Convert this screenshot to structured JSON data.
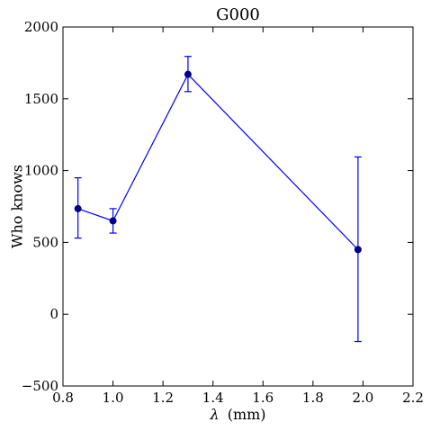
{
  "chart_data": {
    "type": "line",
    "title": "G000",
    "xlabel_symbol": "λ",
    "xlabel_unit": "(mm)",
    "ylabel": "Who knows",
    "xlim": [
      0.8,
      2.2
    ],
    "ylim": [
      -500,
      2000
    ],
    "xticks": [
      0.8,
      1.0,
      1.2,
      1.4,
      1.6,
      1.8,
      2.0,
      2.2
    ],
    "xtick_labels": [
      "0.8",
      "1.0",
      "1.2",
      "1.4",
      "1.6",
      "1.8",
      "2.0",
      "2.2"
    ],
    "yticks": [
      -500,
      0,
      500,
      1000,
      1500,
      2000
    ],
    "ytick_labels": [
      "−500",
      "0",
      "500",
      "1000",
      "1500",
      "2000"
    ],
    "grid": false,
    "series": [
      {
        "color": "#0000ff",
        "marker_color": "#00008b",
        "x": [
          0.86,
          1.0,
          1.3,
          1.98
        ],
        "y": [
          735,
          650,
          1670,
          450
        ],
        "yerr_low": [
          530,
          565,
          1550,
          -190
        ],
        "yerr_high": [
          950,
          735,
          1795,
          1095
        ]
      }
    ]
  }
}
